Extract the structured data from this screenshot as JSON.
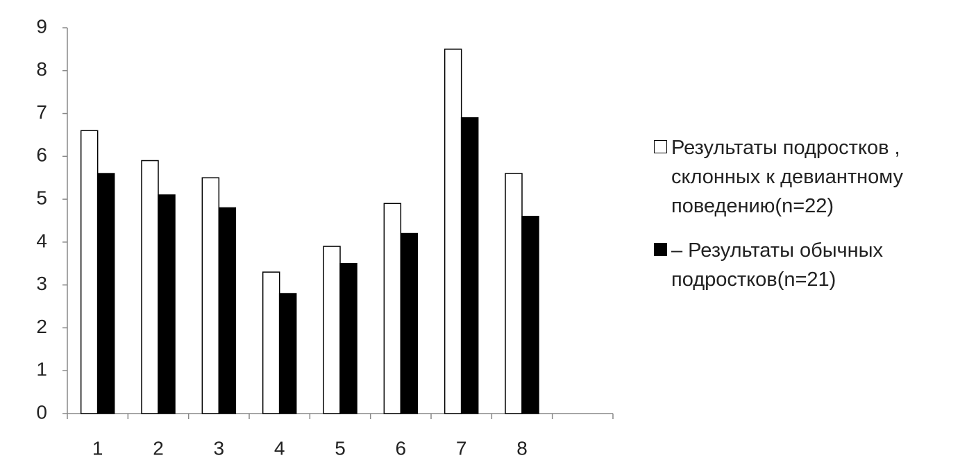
{
  "chart_data": {
    "type": "bar",
    "categories": [
      "1",
      "2",
      "3",
      "4",
      "5",
      "6",
      "7",
      "8",
      null
    ],
    "series": [
      {
        "name": "Результаты подростков , склонных к девиантному поведению(n=22)",
        "color": "#ffffff",
        "values": [
          6.6,
          5.9,
          5.5,
          3.3,
          3.9,
          4.9,
          8.5,
          5.6,
          null
        ]
      },
      {
        "name": "– Результаты обычных подростков(n=21)",
        "color": "#000000",
        "values": [
          5.6,
          5.1,
          4.8,
          2.8,
          3.5,
          4.2,
          6.9,
          4.6,
          null
        ]
      }
    ],
    "ylim": [
      0,
      9
    ],
    "yticks": [
      0,
      1,
      2,
      3,
      4,
      5,
      6,
      7,
      8,
      9
    ],
    "grid": false,
    "legend": "right"
  }
}
